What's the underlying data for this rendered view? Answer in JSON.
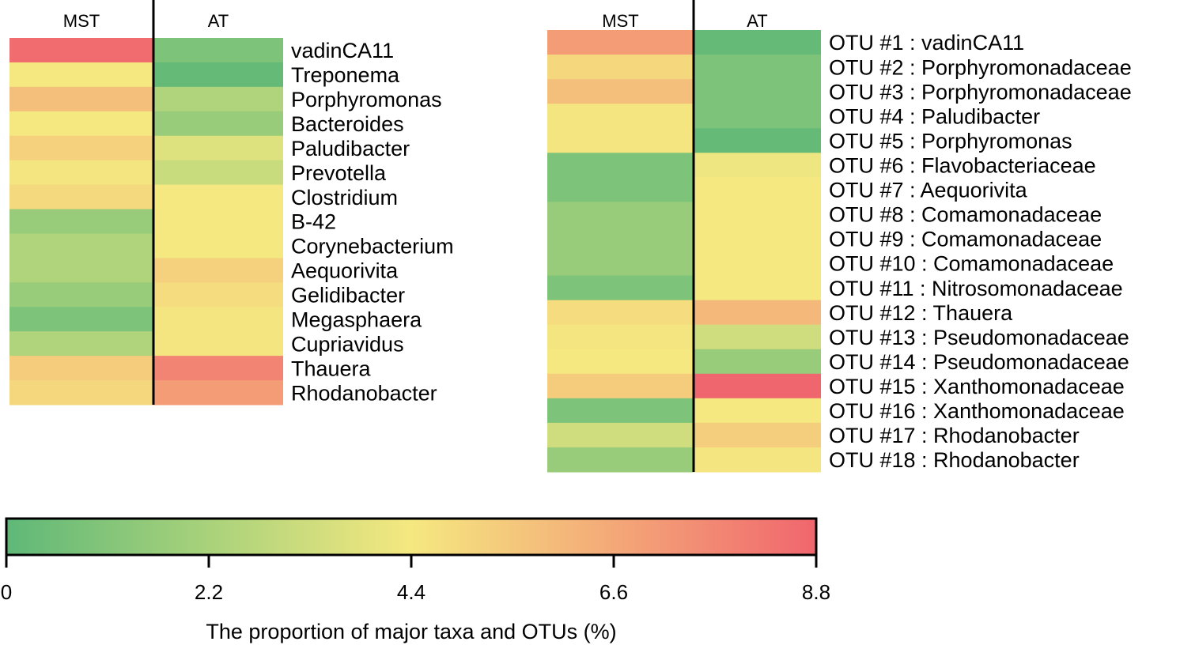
{
  "chart_data": [
    {
      "type": "heatmap",
      "columns": [
        "MST",
        "AT"
      ],
      "rows": [
        "vadinCA11",
        "Treponema",
        "Porphyromonas",
        "Bacteroides",
        "Paludibacter",
        "Prevotella",
        "Clostridium",
        "B-42",
        "Corynebacterium",
        "Aequorivita",
        "Gelidibacter",
        "Megasphaera",
        "Cupriavidus",
        "Thauera",
        "Rhodanobacter"
      ],
      "values": [
        [
          8.6,
          0.9
        ],
        [
          4.4,
          0.2
        ],
        [
          5.8,
          2.4
        ],
        [
          4.4,
          1.7
        ],
        [
          5.2,
          3.7
        ],
        [
          4.5,
          3.1
        ],
        [
          4.9,
          4.4
        ],
        [
          1.7,
          4.4
        ],
        [
          2.4,
          4.4
        ],
        [
          2.4,
          5.2
        ],
        [
          1.7,
          4.8
        ],
        [
          0.9,
          4.5
        ],
        [
          2.4,
          4.5
        ],
        [
          5.4,
          7.8
        ],
        [
          5.0,
          7.0
        ]
      ]
    },
    {
      "type": "heatmap",
      "columns": [
        "MST",
        "AT"
      ],
      "rows": [
        "OTU #1 : vadinCA11",
        "OTU #2 : Porphyromonadaceae",
        "OTU #3 : Porphyromonadaceae",
        "OTU #4 : Paludibacter",
        "OTU #5 : Porphyromonas",
        "OTU #6 : Flavobacteriaceae",
        "OTU #7 : Aequorivita",
        "OTU #8 : Comamonadaceae",
        "OTU #9 : Comamonadaceae",
        "OTU #10 : Comamonadaceae",
        "OTU #11 : Nitrosomonadaceae",
        "OTU #12 : Thauera",
        "OTU #13 : Pseudomonadaceae",
        "OTU #14 : Pseudomonadaceae",
        "OTU #15 : Xanthomonadaceae",
        "OTU #16 : Xanthomonadaceae",
        "OTU #17 : Rhodanobacter",
        "OTU #18 : Rhodanobacter"
      ],
      "values": [
        [
          7.0,
          0.2
        ],
        [
          5.0,
          0.9
        ],
        [
          5.8,
          0.9
        ],
        [
          4.5,
          0.9
        ],
        [
          4.5,
          0.2
        ],
        [
          0.9,
          4.2
        ],
        [
          0.9,
          4.4
        ],
        [
          1.7,
          4.4
        ],
        [
          1.7,
          4.4
        ],
        [
          1.7,
          4.4
        ],
        [
          0.9,
          4.4
        ],
        [
          4.8,
          6.0
        ],
        [
          4.5,
          3.3
        ],
        [
          4.4,
          1.7
        ],
        [
          5.4,
          8.8
        ],
        [
          0.9,
          4.4
        ],
        [
          3.3,
          5.3
        ],
        [
          1.7,
          4.5
        ]
      ]
    }
  ],
  "colorbar": {
    "range": [
      0,
      8.8
    ],
    "ticks": [
      "0",
      "2.2",
      "4.4",
      "6.6",
      "8.8"
    ],
    "label": "The proportion of major taxa and OTUs (%)",
    "colors": [
      "#5fb878",
      "#a9d27b",
      "#f5e880",
      "#f4a878",
      "#f0666e"
    ]
  }
}
